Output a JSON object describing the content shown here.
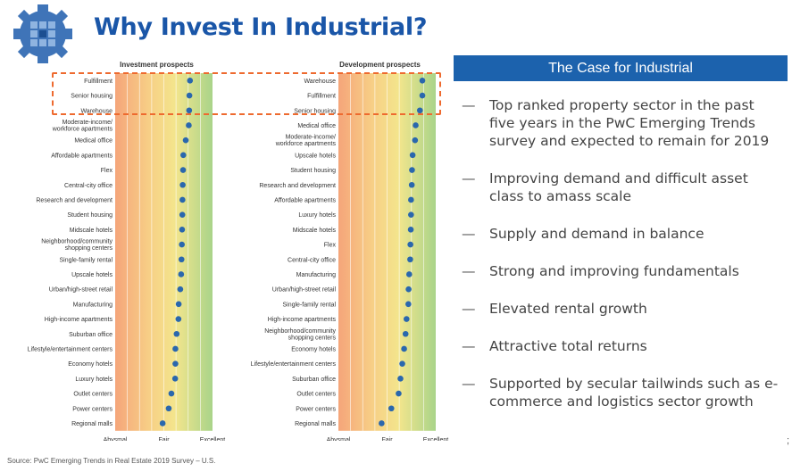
{
  "title": "Why Invest In Industrial?",
  "colors": {
    "title": "#1a56a8",
    "header_bg": "#1c62ad",
    "dot": "#2a67ad",
    "highlight": "#ee6a2f"
  },
  "chart_data": [
    {
      "type": "scatter",
      "title": "Investment prospects",
      "x_scale": [
        "Abysmal",
        "Fair",
        "Excellent"
      ],
      "xlim": [
        1,
        9
      ],
      "categories": [
        "Fulfillment",
        "Senior housing",
        "Warehouse",
        "Moderate-income/ workforce apartments",
        "Medical office",
        "Affordable apartments",
        "Flex",
        "Central-city office",
        "Research and development",
        "Student housing",
        "Midscale hotels",
        "Neighborhood/community shopping centers",
        "Single-family rental",
        "Upscale hotels",
        "Urban/high-street retail",
        "Manufacturing",
        "High-income apartments",
        "Suburban office",
        "Lifestyle/entertainment centers",
        "Economy hotels",
        "Luxury hotels",
        "Outlet centers",
        "Power centers",
        "Regional malls"
      ],
      "values": [
        7.15,
        7.1,
        7.08,
        7.05,
        6.8,
        6.6,
        6.58,
        6.55,
        6.53,
        6.52,
        6.5,
        6.48,
        6.45,
        6.42,
        6.35,
        6.22,
        6.2,
        6.05,
        5.95,
        5.95,
        5.93,
        5.62,
        5.4,
        4.9
      ]
    },
    {
      "type": "scatter",
      "title": "Development prospects",
      "x_scale": [
        "Abysmal",
        "Fair",
        "Excellent"
      ],
      "xlim": [
        1,
        9
      ],
      "categories": [
        "Warehouse",
        "Fulfillment",
        "Senior housing",
        "Medical office",
        "Moderate-income/ workforce apartments",
        "Upscale hotels",
        "Student housing",
        "Research and development",
        "Affordable apartments",
        "Luxury hotels",
        "Midscale hotels",
        "Flex",
        "Central-city office",
        "Manufacturing",
        "Urban/high-street retail",
        "Single-family rental",
        "High-income apartments",
        "Neighborhood/community shopping centers",
        "Economy hotels",
        "Lifestyle/entertainment centers",
        "Suburban office",
        "Outlet centers",
        "Power centers",
        "Regional malls"
      ],
      "values": [
        7.9,
        7.9,
        7.7,
        7.35,
        7.3,
        7.1,
        7.05,
        7.03,
        6.97,
        6.97,
        6.95,
        6.92,
        6.9,
        6.82,
        6.77,
        6.75,
        6.6,
        6.52,
        6.4,
        6.25,
        6.1,
        5.95,
        5.35,
        4.55
      ]
    }
  ],
  "case": {
    "header": "The Case for Industrial",
    "dash": "—",
    "bullets": [
      "Top ranked property sector in the past five years in the PwC Emerging Trends survey and expected to remain for 2019",
      "Improving demand and difficult asset class to amass scale",
      "Supply and demand in balance",
      "Strong and improving fundamentals",
      "Elevated rental growth",
      "Attractive total returns",
      "Supported by secular tailwinds such as e-commerce and logistics sector growth"
    ]
  },
  "source": "Source: PwC Emerging Trends in Real Estate 2019 Survey – U.S.",
  "page_mark": ";"
}
